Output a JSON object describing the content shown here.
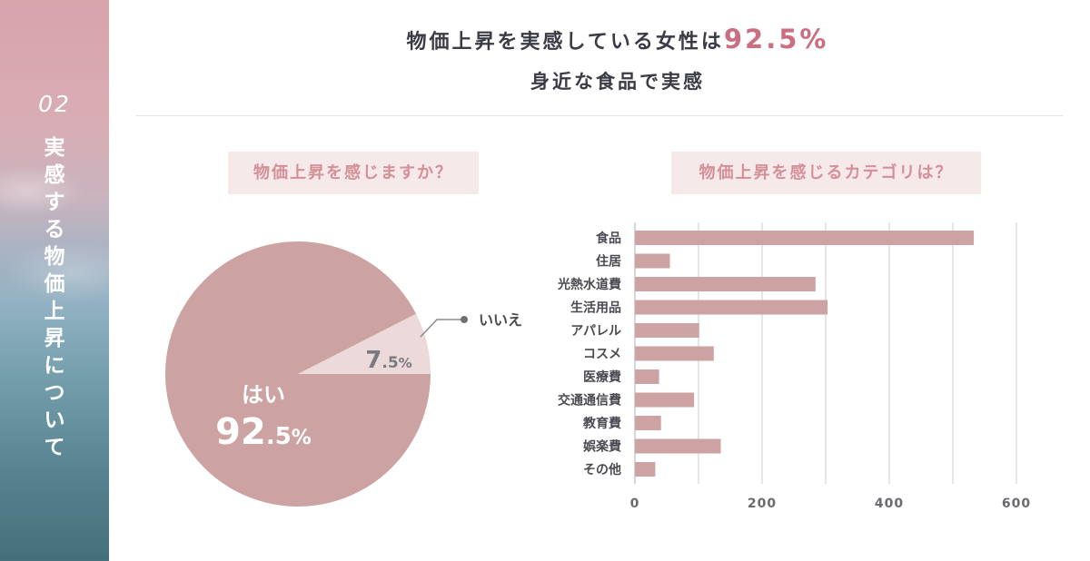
{
  "sidebar": {
    "number": "02",
    "title": "実感する物価上昇について"
  },
  "header": {
    "title_prefix": "物価上昇を実感している女性は",
    "title_highlight": "92.5%",
    "subtitle": "身近な食品で実感"
  },
  "pill_left": "物価上昇を感じますか？",
  "pill_right": "物価上昇を感じるカテゴリは？",
  "colors": {
    "accent": "#c96f81",
    "pie_yes": "#cca3a2",
    "pie_no": "#ecd9d9",
    "bar": "#cca3a2"
  },
  "chart_data": [
    {
      "type": "pie",
      "slices": [
        {
          "label": "はい",
          "value_label": "92.5",
          "unit": "%",
          "value": 92.5
        },
        {
          "label": "いいえ",
          "value_label": "7.5",
          "unit": "%",
          "value": 7.5
        }
      ]
    },
    {
      "type": "bar",
      "orientation": "horizontal",
      "categories": [
        "食品",
        "住居",
        "光熱水道費",
        "生活用品",
        "アパレル",
        "コスメ",
        "医療費",
        "交通通信費",
        "教育費",
        "娯楽費",
        "その他"
      ],
      "values": [
        533,
        55,
        284,
        303,
        101,
        124,
        38,
        93,
        41,
        135,
        32
      ],
      "xlim": [
        0,
        600
      ],
      "xticks": [
        0,
        200,
        400,
        600
      ],
      "grid": true
    }
  ]
}
